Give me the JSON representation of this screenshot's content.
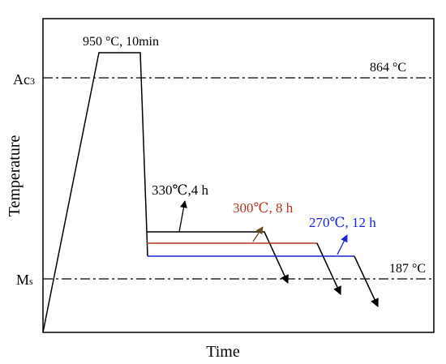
{
  "axes": {
    "xlabel": "Time",
    "ylabel": "Temperature"
  },
  "levels": {
    "ac3": {
      "label_main": "Ac",
      "label_sub": "3",
      "value_text": "864 °C"
    },
    "ms": {
      "label_main": "M",
      "label_sub": "s",
      "value_text": "187 °C"
    }
  },
  "austenitizing": {
    "label": "950 °C, 10min"
  },
  "treatments": [
    {
      "label": "330℃,4 h",
      "color": "#000000"
    },
    {
      "label": "300℃, 8 h",
      "color": "#b5371f"
    },
    {
      "label": "270℃, 12 h",
      "color": "#1a23d6"
    }
  ],
  "colors": {
    "axis": "#000000",
    "brown_arrow": "#6b4a1c"
  }
}
